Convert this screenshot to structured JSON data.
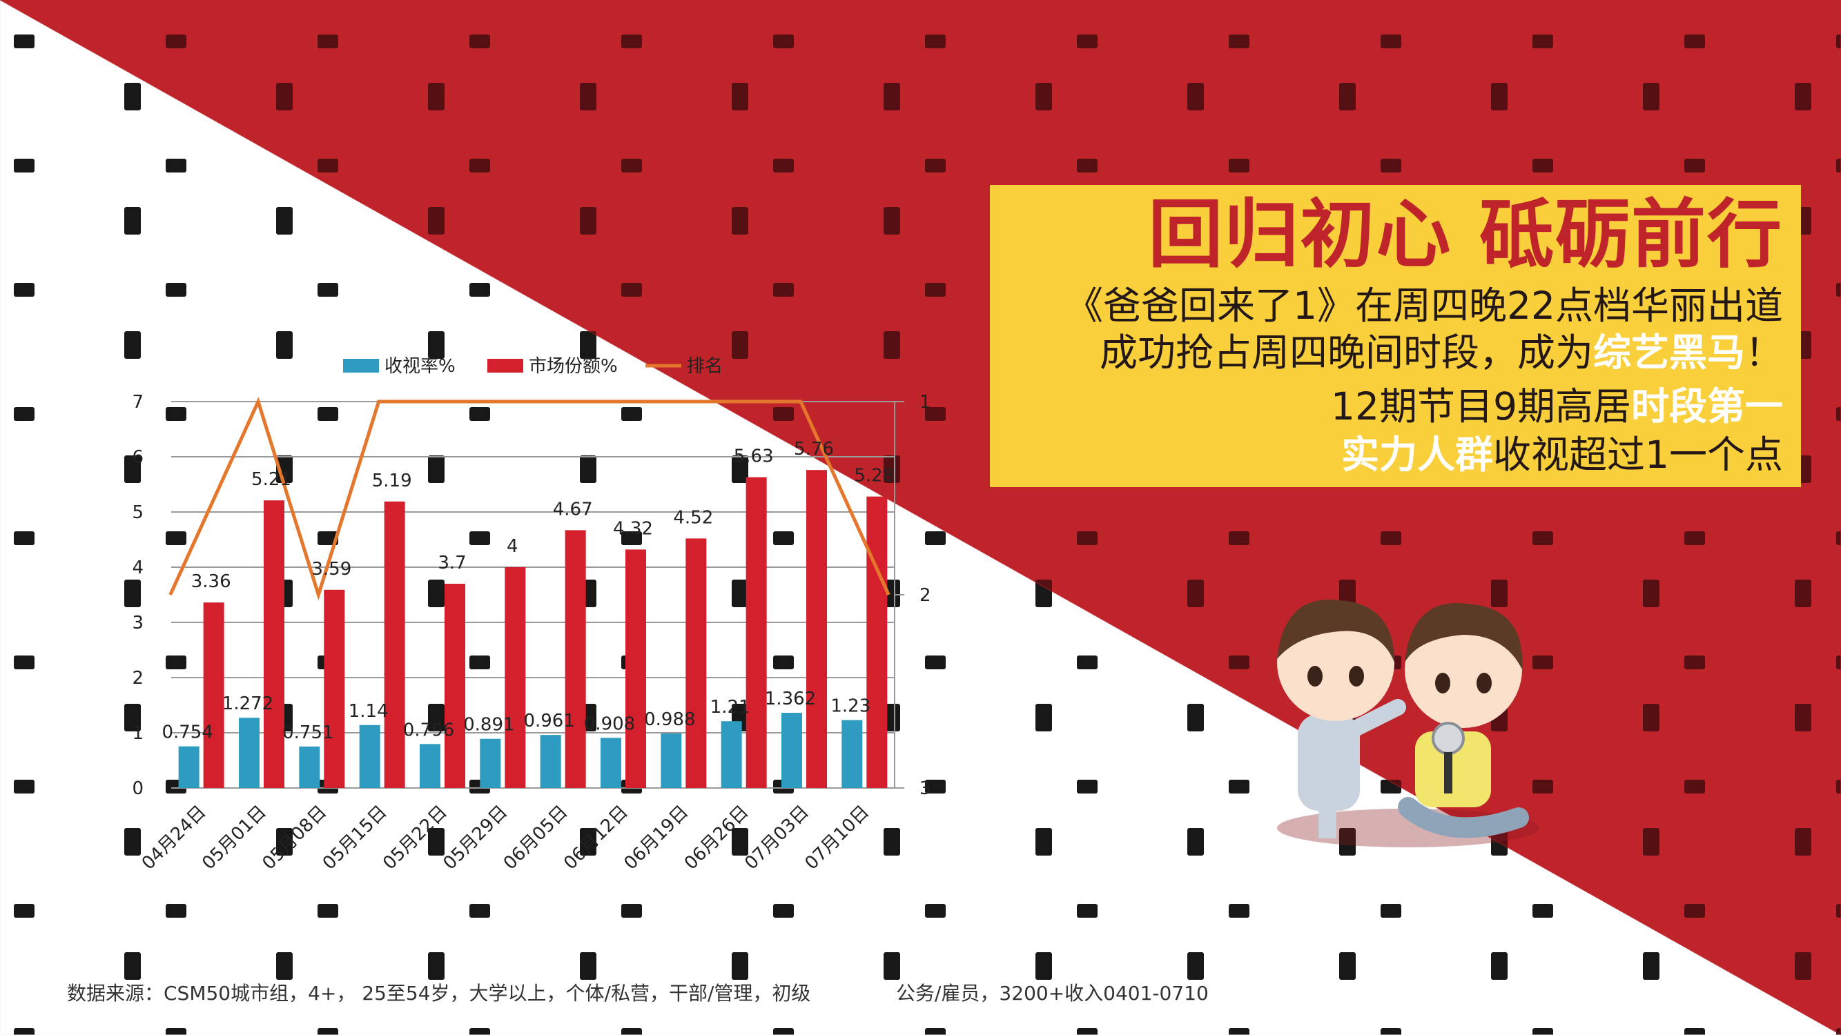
{
  "panel": {
    "title": "回归初心 砥砺前行",
    "line1": "《爸爸回来了1》在周四晚22点档华丽出道",
    "line2_a": "成功抢占周四晚间时段，成为",
    "line2_hl": "综艺黑马",
    "line2_b": "！",
    "line3_a": "12期节目9期高居",
    "line3_hl": "时段第一",
    "line4_hl": "实力人群",
    "line4_b": "收视超过1一个点"
  },
  "source": {
    "left": "数据来源：CSM50城市组，4+， 25至54岁，大学以上，个体/私营，干部/管理，初级",
    "right": "公务/雇员，3200+收入0401-0710"
  },
  "colors": {
    "red": "#c0242b",
    "yellow": "#f9cf3c",
    "bar_rating": "#2e9cc0",
    "bar_share": "#d4202c",
    "line_rank": "#e4772b"
  },
  "chart_data": {
    "type": "bar",
    "categories": [
      "04月24日",
      "05月01日",
      "05月08日",
      "05月15日",
      "05月22日",
      "05月29日",
      "06月05日",
      "06月12日",
      "06月19日",
      "06月26日",
      "07月03日",
      "07月10日"
    ],
    "series": [
      {
        "name": "收视率%",
        "type": "bar",
        "axis": "left",
        "values": [
          0.754,
          1.272,
          0.751,
          1.14,
          0.796,
          0.891,
          0.961,
          0.908,
          0.988,
          1.21,
          1.362,
          1.23
        ]
      },
      {
        "name": "市场份额%",
        "type": "bar",
        "axis": "left",
        "values": [
          3.36,
          5.21,
          3.59,
          5.19,
          3.7,
          4,
          4.67,
          4.32,
          4.52,
          5.63,
          5.76,
          5.28
        ]
      },
      {
        "name": "排名",
        "type": "line",
        "axis": "right",
        "values": [
          2,
          1,
          2,
          1,
          1,
          1,
          1,
          1,
          1,
          1,
          1,
          2
        ]
      }
    ],
    "ylim": [
      0,
      7
    ],
    "yticks": [
      "0",
      "1",
      "2",
      "3",
      "4",
      "5",
      "6",
      "7"
    ],
    "y2lim": [
      1,
      3
    ],
    "y2_reversed": true,
    "y2ticks": [
      "1",
      "2",
      "3"
    ],
    "grid": true,
    "legend": "top"
  }
}
